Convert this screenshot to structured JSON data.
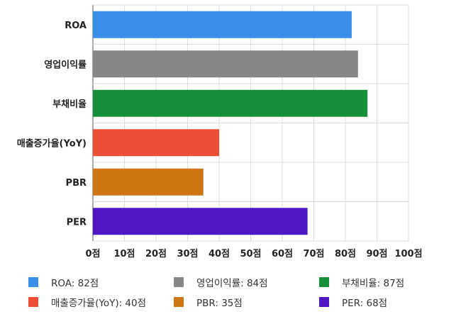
{
  "chart_data": {
    "type": "bar",
    "orientation": "horizontal",
    "categories": [
      "ROA",
      "영업이익률",
      "부채비율",
      "매출증가율(YoY)",
      "PBR",
      "PER"
    ],
    "values": [
      82,
      84,
      87,
      40,
      35,
      68
    ],
    "colors": [
      "#3c8fe8",
      "#878787",
      "#178f38",
      "#ec4d37",
      "#cf7614",
      "#4e19c2"
    ],
    "xlim": [
      0,
      100
    ],
    "x_ticks": [
      "0점",
      "10점",
      "20점",
      "30점",
      "40점",
      "50점",
      "60점",
      "70점",
      "80점",
      "90점",
      "100점"
    ],
    "grid": true,
    "legend_position": "bottom",
    "legend": [
      "ROA: 82점",
      "영업이익률: 84점",
      "부채비율: 87점",
      "매출증가율(YoY): 40점",
      "PBR: 35점",
      "PER: 68점"
    ]
  }
}
